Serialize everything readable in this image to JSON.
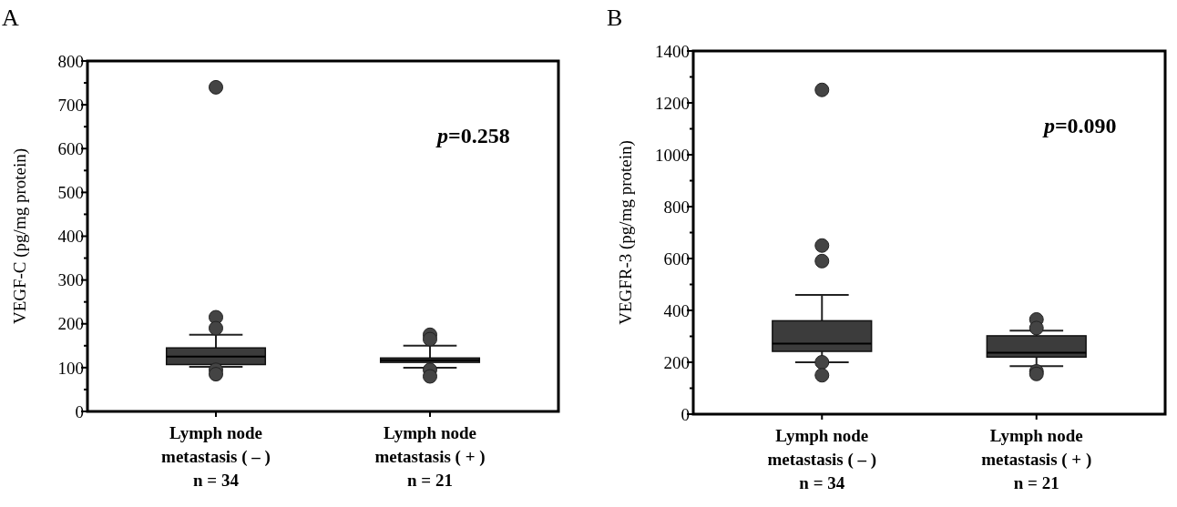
{
  "chart_data": [
    {
      "type": "box",
      "title": "A",
      "ylabel": "VEGF-C (pg/mg protein)",
      "categories": [
        "Lymph node\nmetastasis ( – )\nn = 34",
        "Lymph node\nmetastasis ( + )\nn = 21"
      ],
      "color": "#3c3c3c",
      "boxes": [
        {
          "low": 102,
          "q1": 107,
          "median": 125,
          "q3": 145,
          "high": 175,
          "outliers": [
            740,
            215,
            190,
            95,
            85
          ]
        },
        {
          "low": 100,
          "q1": 112,
          "median": 117,
          "q3": 122,
          "high": 150,
          "outliers": [
            175,
            165,
            95,
            80
          ]
        }
      ],
      "ylim": [
        0,
        800
      ],
      "yticks": [
        0,
        {
          "value": 50,
          "label": null
        },
        100,
        {
          "value": 150,
          "label": null
        },
        200,
        {
          "value": 250,
          "label": null
        },
        300,
        {
          "value": 350,
          "label": null
        },
        400,
        {
          "value": 450,
          "label": null
        },
        500,
        {
          "value": 550,
          "label": null
        },
        600,
        {
          "value": 650,
          "label": null
        },
        700,
        {
          "value": 750,
          "label": null
        },
        800
      ],
      "annotations": [
        "p=0.258"
      ],
      "grid": false
    },
    {
      "type": "box",
      "title": "B",
      "ylabel": "VEGFR-3 (pg/mg protein)",
      "categories": [
        "Lymph node\nmetastasis ( – )\nn = 34",
        "Lymph node\nmetastasis ( + )\nn = 21"
      ],
      "color": "#3c3c3c",
      "boxes": [
        {
          "low": 200,
          "q1": 242,
          "median": 272,
          "q3": 360,
          "high": 460,
          "outliers": [
            1250,
            650,
            590,
            200,
            150
          ]
        },
        {
          "low": 185,
          "q1": 220,
          "median": 237,
          "q3": 302,
          "high": 322,
          "outliers": [
            365,
            332,
            165,
            155
          ]
        }
      ],
      "ylim": [
        0,
        1400
      ],
      "yticks": [
        0,
        {
          "value": 100,
          "label": null
        },
        200,
        {
          "value": 300,
          "label": null
        },
        400,
        {
          "value": 500,
          "label": null
        },
        600,
        {
          "value": 700,
          "label": null
        },
        800,
        {
          "value": 900,
          "label": null
        },
        1000,
        {
          "value": 1100,
          "label": null
        },
        1200,
        {
          "value": 1300,
          "label": null
        },
        1400
      ],
      "annotations": [
        "p=0.090"
      ],
      "grid": false
    }
  ]
}
